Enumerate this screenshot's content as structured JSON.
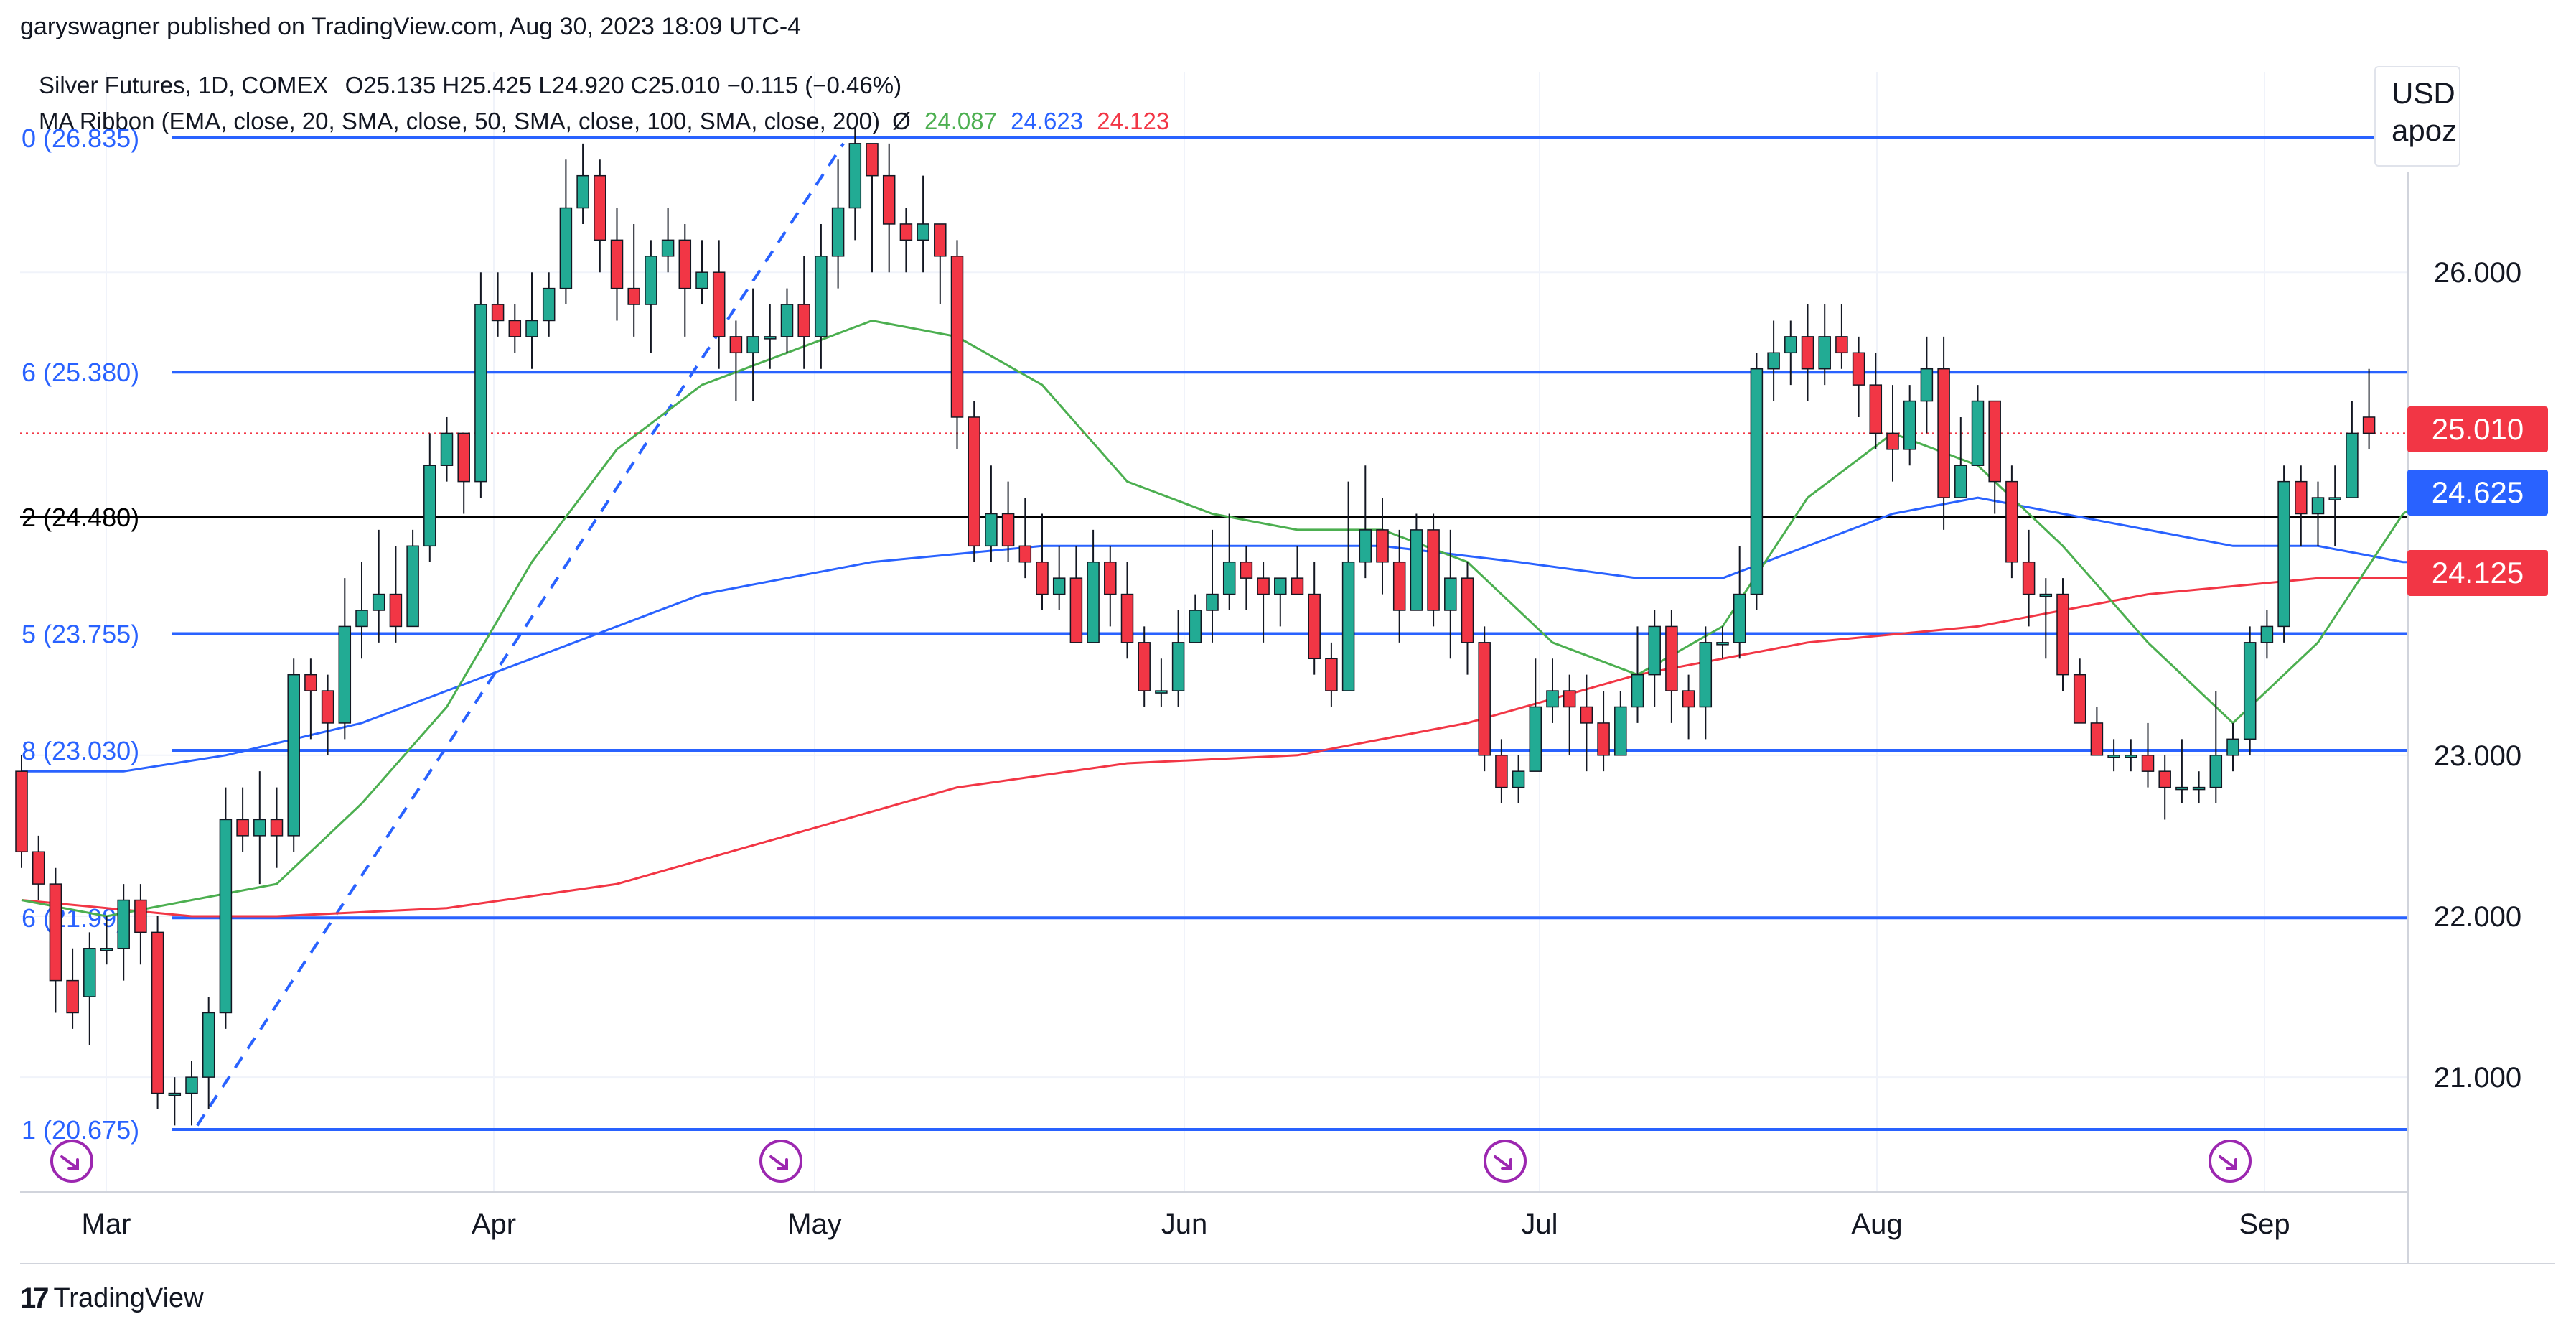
{
  "header": {
    "publisher": "garyswagner published on TradingView.com, Aug 30, 2023 18:09 UTC-4",
    "symbol": "Silver Futures, 1D, COMEX",
    "ohlc": "O25.135  H25.425  L24.920  C25.010  −0.115 (−0.46%)",
    "ribbon_label": "MA Ribbon (EMA, close, 20, SMA, close, 50, SMA, close, 100, SMA, close, 200)",
    "ribbon_symbol": "Ø",
    "ma_values": [
      "24.087",
      "24.623",
      "24.123"
    ],
    "ma_colors": [
      "#4caf50",
      "#2962ff",
      "#f23645"
    ]
  },
  "currency": [
    "USD",
    "apoz"
  ],
  "footer_logo": "TradingView",
  "colors": {
    "up": "#22ab94",
    "down": "#f23645",
    "fib": "#2962ff",
    "ema20": "#4caf50",
    "sma50": "#2962ff",
    "sma200": "#f23645",
    "key_level": "#000000"
  },
  "price_tags": [
    {
      "value": "25.010",
      "color": "#f23645"
    },
    {
      "value": "24.625",
      "color": "#2962ff"
    },
    {
      "value": "24.125",
      "color": "#f23645"
    }
  ],
  "chart_data": {
    "type": "candlestick",
    "title": "Silver Futures, 1D, COMEX",
    "ylim": [
      20.4,
      26.8
    ],
    "y_ticks": [
      "21.000",
      "22.000",
      "23.000",
      "26.000"
    ],
    "x_ticks": [
      "Mar",
      "Apr",
      "May",
      "Jun",
      "Jul",
      "Aug",
      "Sep"
    ],
    "fib_levels": [
      {
        "label": "0 (26.835)",
        "value": 26.835
      },
      {
        "label": "6 (25.380)",
        "value": 25.38
      },
      {
        "label": "2 (24.480)",
        "value": 24.48
      },
      {
        "label": "5 (23.755)",
        "value": 23.755
      },
      {
        "label": "8 (23.030)",
        "value": 23.03
      },
      {
        "label": "6 (21.99)",
        "value": 21.99
      },
      {
        "label": "1 (20.675)",
        "value": 20.675
      }
    ],
    "trend_line": [
      [
        4,
        20.7
      ],
      [
        23,
        26.8
      ]
    ],
    "candles": [
      [
        22.9,
        22.4,
        23.0,
        22.3
      ],
      [
        22.4,
        22.2,
        22.5,
        22.1
      ],
      [
        22.2,
        21.6,
        22.3,
        21.4
      ],
      [
        21.6,
        21.4,
        21.8,
        21.3
      ],
      [
        21.5,
        21.8,
        21.9,
        21.2
      ],
      [
        21.8,
        21.8,
        22.0,
        21.7
      ],
      [
        21.8,
        22.1,
        22.2,
        21.6
      ],
      [
        22.1,
        21.9,
        22.2,
        21.7
      ],
      [
        21.9,
        20.9,
        22.0,
        20.8
      ],
      [
        20.9,
        20.9,
        21.0,
        20.7
      ],
      [
        20.9,
        21.0,
        21.1,
        20.7
      ],
      [
        21.0,
        21.4,
        21.5,
        20.8
      ],
      [
        21.4,
        22.6,
        22.8,
        21.3
      ],
      [
        22.6,
        22.5,
        22.8,
        22.4
      ],
      [
        22.5,
        22.6,
        22.9,
        22.2
      ],
      [
        22.6,
        22.5,
        22.8,
        22.3
      ],
      [
        22.5,
        23.5,
        23.6,
        22.4
      ],
      [
        23.5,
        23.4,
        23.6,
        23.1
      ],
      [
        23.4,
        23.2,
        23.5,
        23.0
      ],
      [
        23.2,
        23.8,
        24.1,
        23.1
      ],
      [
        23.8,
        23.9,
        24.2,
        23.6
      ],
      [
        23.9,
        24.0,
        24.4,
        23.7
      ],
      [
        24.0,
        23.8,
        24.3,
        23.7
      ],
      [
        23.8,
        24.3,
        24.4,
        23.8
      ],
      [
        24.3,
        24.8,
        25.0,
        24.2
      ],
      [
        24.8,
        25.0,
        25.1,
        24.7
      ],
      [
        25.0,
        24.7,
        25.0,
        24.5
      ],
      [
        24.7,
        25.8,
        26.0,
        24.6
      ],
      [
        25.8,
        25.7,
        26.0,
        25.6
      ],
      [
        25.7,
        25.6,
        25.8,
        25.5
      ],
      [
        25.6,
        25.7,
        26.0,
        25.4
      ],
      [
        25.7,
        25.9,
        26.0,
        25.6
      ],
      [
        25.9,
        26.4,
        26.7,
        25.8
      ],
      [
        26.4,
        26.6,
        26.8,
        26.3
      ],
      [
        26.6,
        26.2,
        26.7,
        26.0
      ],
      [
        26.2,
        25.9,
        26.4,
        25.7
      ],
      [
        25.9,
        25.8,
        26.3,
        25.6
      ],
      [
        25.8,
        26.1,
        26.2,
        25.5
      ],
      [
        26.1,
        26.2,
        26.4,
        26.0
      ],
      [
        26.2,
        25.9,
        26.3,
        25.6
      ],
      [
        25.9,
        26.0,
        26.2,
        25.8
      ],
      [
        26.0,
        25.6,
        26.2,
        25.4
      ],
      [
        25.6,
        25.5,
        25.7,
        25.2
      ],
      [
        25.5,
        25.6,
        25.9,
        25.2
      ],
      [
        25.6,
        25.6,
        25.8,
        25.4
      ],
      [
        25.6,
        25.8,
        25.9,
        25.5
      ],
      [
        25.8,
        25.6,
        26.1,
        25.4
      ],
      [
        25.6,
        26.1,
        26.3,
        25.4
      ],
      [
        26.1,
        26.4,
        26.7,
        25.9
      ],
      [
        26.4,
        26.8,
        26.9,
        26.2
      ],
      [
        26.8,
        26.6,
        26.8,
        26.0
      ],
      [
        26.6,
        26.3,
        26.8,
        26.0
      ],
      [
        26.3,
        26.2,
        26.4,
        26.0
      ],
      [
        26.2,
        26.3,
        26.6,
        26.0
      ],
      [
        26.3,
        26.1,
        26.3,
        25.8
      ],
      [
        26.1,
        25.1,
        26.2,
        24.9
      ],
      [
        25.1,
        24.3,
        25.2,
        24.2
      ],
      [
        24.3,
        24.5,
        24.8,
        24.2
      ],
      [
        24.5,
        24.3,
        24.7,
        24.2
      ],
      [
        24.3,
        24.2,
        24.6,
        24.1
      ],
      [
        24.2,
        24.0,
        24.5,
        23.9
      ],
      [
        24.0,
        24.1,
        24.3,
        23.9
      ],
      [
        24.1,
        23.7,
        24.3,
        23.7
      ],
      [
        23.7,
        24.2,
        24.4,
        23.7
      ],
      [
        24.2,
        24.0,
        24.3,
        23.8
      ],
      [
        24.0,
        23.7,
        24.2,
        23.6
      ],
      [
        23.7,
        23.4,
        23.8,
        23.3
      ],
      [
        23.4,
        23.4,
        23.6,
        23.3
      ],
      [
        23.4,
        23.7,
        23.9,
        23.3
      ],
      [
        23.7,
        23.9,
        24.0,
        23.7
      ],
      [
        23.9,
        24.0,
        24.4,
        23.7
      ],
      [
        24.0,
        24.2,
        24.5,
        23.9
      ],
      [
        24.2,
        24.1,
        24.3,
        23.9
      ],
      [
        24.1,
        24.0,
        24.2,
        23.7
      ],
      [
        24.0,
        24.1,
        24.1,
        23.8
      ],
      [
        24.1,
        24.0,
        24.3,
        24.0
      ],
      [
        24.0,
        23.6,
        24.2,
        23.5
      ],
      [
        23.6,
        23.4,
        23.7,
        23.3
      ],
      [
        23.4,
        24.2,
        24.7,
        24.0
      ],
      [
        24.2,
        24.4,
        24.8,
        24.1
      ],
      [
        24.4,
        24.2,
        24.6,
        24.0
      ],
      [
        24.2,
        23.9,
        24.4,
        23.7
      ],
      [
        23.9,
        24.4,
        24.5,
        24.0
      ],
      [
        24.4,
        23.9,
        24.5,
        23.8
      ],
      [
        23.9,
        24.1,
        24.4,
        23.6
      ],
      [
        24.1,
        23.7,
        24.2,
        23.5
      ],
      [
        23.7,
        23.0,
        23.8,
        22.9
      ],
      [
        23.0,
        22.8,
        23.1,
        22.7
      ],
      [
        22.8,
        22.9,
        23.0,
        22.7
      ],
      [
        22.9,
        23.3,
        23.6,
        22.9
      ],
      [
        23.3,
        23.4,
        23.6,
        23.2
      ],
      [
        23.4,
        23.3,
        23.5,
        23.0
      ],
      [
        23.3,
        23.2,
        23.5,
        22.9
      ],
      [
        23.2,
        23.0,
        23.4,
        22.9
      ],
      [
        23.0,
        23.3,
        23.4,
        23.1
      ],
      [
        23.3,
        23.5,
        23.8,
        23.2
      ],
      [
        23.5,
        23.8,
        23.9,
        23.3
      ],
      [
        23.8,
        23.4,
        23.9,
        23.2
      ],
      [
        23.4,
        23.3,
        23.5,
        23.1
      ],
      [
        23.3,
        23.7,
        23.8,
        23.1
      ],
      [
        23.7,
        23.7,
        23.8,
        23.6
      ],
      [
        23.7,
        24.0,
        24.3,
        23.6
      ],
      [
        24.0,
        25.4,
        25.5,
        23.9
      ],
      [
        25.4,
        25.5,
        25.7,
        25.2
      ],
      [
        25.5,
        25.6,
        25.7,
        25.3
      ],
      [
        25.6,
        25.4,
        25.8,
        25.2
      ],
      [
        25.4,
        25.6,
        25.8,
        25.3
      ],
      [
        25.6,
        25.5,
        25.8,
        25.4
      ],
      [
        25.5,
        25.3,
        25.6,
        25.1
      ],
      [
        25.3,
        25.0,
        25.5,
        24.9
      ],
      [
        25.0,
        24.9,
        25.3,
        24.7
      ],
      [
        24.9,
        25.2,
        25.3,
        24.8
      ],
      [
        25.2,
        25.4,
        25.6,
        25.0
      ],
      [
        25.4,
        24.6,
        25.6,
        24.4
      ],
      [
        24.6,
        24.8,
        25.1,
        24.6
      ],
      [
        24.8,
        25.2,
        25.3,
        24.8
      ],
      [
        25.2,
        24.7,
        25.2,
        24.5
      ],
      [
        24.7,
        24.2,
        24.8,
        24.1
      ],
      [
        24.2,
        24.0,
        24.4,
        23.8
      ],
      [
        24.0,
        24.0,
        24.1,
        23.6
      ],
      [
        24.0,
        23.5,
        24.1,
        23.4
      ],
      [
        23.5,
        23.2,
        23.6,
        23.2
      ],
      [
        23.2,
        23.0,
        23.3,
        23.0
      ],
      [
        23.0,
        23.0,
        23.1,
        22.9
      ],
      [
        23.0,
        23.0,
        23.1,
        22.9
      ],
      [
        23.0,
        22.9,
        23.2,
        22.8
      ],
      [
        22.9,
        22.8,
        23.0,
        22.6
      ],
      [
        22.8,
        22.8,
        23.1,
        22.7
      ],
      [
        22.8,
        22.8,
        22.9,
        22.7
      ],
      [
        22.8,
        23.0,
        23.4,
        22.7
      ],
      [
        23.0,
        23.1,
        23.2,
        22.9
      ],
      [
        23.1,
        23.7,
        23.8,
        23.0
      ],
      [
        23.7,
        23.8,
        23.9,
        23.6
      ],
      [
        23.8,
        24.7,
        24.8,
        23.7
      ],
      [
        24.7,
        24.5,
        24.8,
        24.3
      ],
      [
        24.5,
        24.6,
        24.7,
        24.3
      ],
      [
        24.6,
        24.6,
        24.8,
        24.3
      ],
      [
        24.6,
        25.0,
        25.2,
        24.6
      ],
      [
        25.1,
        25.0,
        25.4,
        24.9
      ]
    ],
    "ema20": [
      [
        0,
        22.1
      ],
      [
        5,
        22.0
      ],
      [
        10,
        22.1
      ],
      [
        15,
        22.2
      ],
      [
        20,
        22.7
      ],
      [
        25,
        23.3
      ],
      [
        30,
        24.2
      ],
      [
        35,
        24.9
      ],
      [
        40,
        25.3
      ],
      [
        45,
        25.5
      ],
      [
        50,
        25.7
      ],
      [
        55,
        25.6
      ],
      [
        60,
        25.3
      ],
      [
        65,
        24.7
      ],
      [
        70,
        24.5
      ],
      [
        75,
        24.4
      ],
      [
        80,
        24.4
      ],
      [
        85,
        24.2
      ],
      [
        90,
        23.7
      ],
      [
        95,
        23.5
      ],
      [
        100,
        23.8
      ],
      [
        105,
        24.6
      ],
      [
        110,
        25.0
      ],
      [
        115,
        24.8
      ],
      [
        120,
        24.3
      ],
      [
        125,
        23.7
      ],
      [
        130,
        23.2
      ],
      [
        135,
        23.7
      ],
      [
        140,
        24.5
      ],
      [
        143,
        24.7
      ]
    ],
    "sma50": [
      [
        0,
        22.9
      ],
      [
        6,
        22.9
      ],
      [
        12,
        23.0
      ],
      [
        20,
        23.2
      ],
      [
        30,
        23.6
      ],
      [
        40,
        24.0
      ],
      [
        50,
        24.2
      ],
      [
        60,
        24.3
      ],
      [
        70,
        24.3
      ],
      [
        80,
        24.3
      ],
      [
        88,
        24.2
      ],
      [
        95,
        24.1
      ],
      [
        100,
        24.1
      ],
      [
        105,
        24.3
      ],
      [
        110,
        24.5
      ],
      [
        115,
        24.6
      ],
      [
        120,
        24.5
      ],
      [
        125,
        24.4
      ],
      [
        130,
        24.3
      ],
      [
        135,
        24.3
      ],
      [
        140,
        24.2
      ],
      [
        143,
        24.2
      ]
    ],
    "sma200": [
      [
        0,
        22.1
      ],
      [
        5,
        22.05
      ],
      [
        10,
        22.0
      ],
      [
        15,
        22.0
      ],
      [
        25,
        22.05
      ],
      [
        35,
        22.2
      ],
      [
        45,
        22.5
      ],
      [
        55,
        22.8
      ],
      [
        65,
        22.95
      ],
      [
        75,
        23.0
      ],
      [
        85,
        23.2
      ],
      [
        95,
        23.5
      ],
      [
        105,
        23.7
      ],
      [
        115,
        23.8
      ],
      [
        125,
        24.0
      ],
      [
        135,
        24.1
      ],
      [
        143,
        24.1
      ]
    ]
  }
}
